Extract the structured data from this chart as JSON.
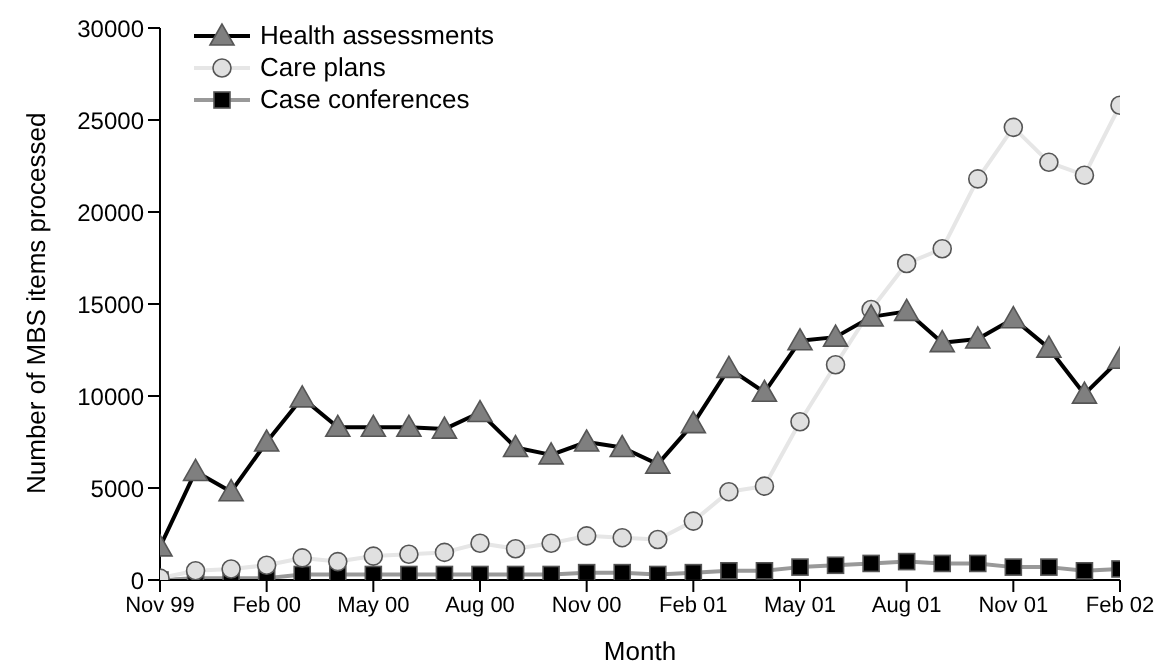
{
  "chart_data": {
    "type": "line",
    "xlabel": "Month",
    "ylabel": "Number of MBS items processed",
    "categories": [
      "Nov 99",
      null,
      null,
      "Feb 00",
      null,
      null,
      "May 00",
      null,
      null,
      "Aug 00",
      null,
      null,
      "Nov 00",
      null,
      null,
      "Feb 01",
      null,
      null,
      "May 01",
      null,
      null,
      "Aug 01",
      null,
      null,
      "Nov 01",
      null,
      null,
      "Feb 02"
    ],
    "series": [
      {
        "name": "Health assessments",
        "color": "#7f7f7f",
        "marker": "triangle",
        "values": [
          1800,
          5900,
          4800,
          7500,
          9900,
          8300,
          8300,
          8300,
          8200,
          9100,
          7200,
          6800,
          7500,
          7200,
          6300,
          8500,
          11500,
          10200,
          13000,
          13200,
          14300,
          14600,
          12900,
          13100,
          14200,
          12600,
          10100,
          12000
        ]
      },
      {
        "name": "Care plans",
        "color": "#e0e0e0",
        "marker": "circle",
        "values": [
          100,
          500,
          600,
          800,
          1200,
          1000,
          1300,
          1400,
          1500,
          2000,
          1700,
          2000,
          2400,
          2300,
          2200,
          3200,
          4800,
          5100,
          8600,
          11700,
          14700,
          17200,
          18000,
          21800,
          24600,
          22700,
          22000,
          25800
        ]
      },
      {
        "name": "Case conferences",
        "color": "#000000",
        "marker": "square",
        "values": [
          0,
          100,
          100,
          100,
          300,
          300,
          300,
          300,
          300,
          300,
          300,
          300,
          400,
          400,
          300,
          400,
          500,
          500,
          700,
          800,
          900,
          1000,
          900,
          900,
          700,
          700,
          500,
          600
        ]
      }
    ],
    "ylim": [
      0,
      30000
    ],
    "yticks": [
      0,
      5000,
      10000,
      15000,
      20000,
      25000,
      30000
    ],
    "grid": false,
    "legend": "top left"
  }
}
